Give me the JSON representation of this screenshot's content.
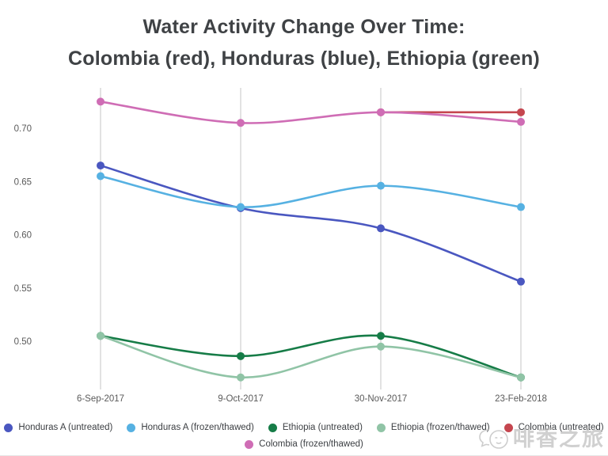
{
  "title": {
    "line1": "Water Activity Change Over Time:",
    "line2": "Colombia (red), Honduras (blue), Ethiopia (green)"
  },
  "chart_data": {
    "type": "line",
    "title": "Water Activity Change Over Time: Colombia (red), Honduras (blue), Ethiopia (green)",
    "x_categories": [
      "6-Sep-2017",
      "9-Oct-2017",
      "30-Nov-2017",
      "23-Feb-2018"
    ],
    "y_ticks": [
      "0.70",
      "0.65",
      "0.60",
      "0.55",
      "0.50"
    ],
    "ylim": [
      0.455,
      0.74
    ],
    "grid": "vertical-only",
    "legend_position": "bottom",
    "curve": "smooth",
    "series": [
      {
        "name": "Honduras A (untreated)",
        "color": "#4a57c0",
        "values": [
          0.665,
          0.625,
          0.606,
          0.556
        ]
      },
      {
        "name": "Honduras A (frozen/thawed)",
        "color": "#56b1e2",
        "values": [
          0.655,
          0.626,
          0.646,
          0.626
        ]
      },
      {
        "name": "Ethiopia (untreated)",
        "color": "#167c47",
        "values": [
          0.505,
          0.486,
          0.505,
          0.466
        ]
      },
      {
        "name": "Ethiopia (frozen/thawed)",
        "color": "#90c4a6",
        "values": [
          0.505,
          0.466,
          0.495,
          0.466
        ]
      },
      {
        "name": "Colombia (untreated)",
        "color": "#c5464f",
        "values": [
          null,
          null,
          0.715,
          0.715
        ]
      },
      {
        "name": "Colombia (frozen/thawed)",
        "color": "#cf6db5",
        "values": [
          0.725,
          0.705,
          0.715,
          0.706
        ]
      }
    ],
    "legend_rows": [
      [
        0,
        1,
        2,
        3,
        4
      ],
      [
        5
      ]
    ],
    "axis_label_color": "#5a5a5a",
    "gridline_color": "#d9d9d9",
    "title_color": "#3f4245"
  },
  "watermark": {
    "text": "啡香之旅",
    "logo": "chat-bubbles-logo"
  }
}
